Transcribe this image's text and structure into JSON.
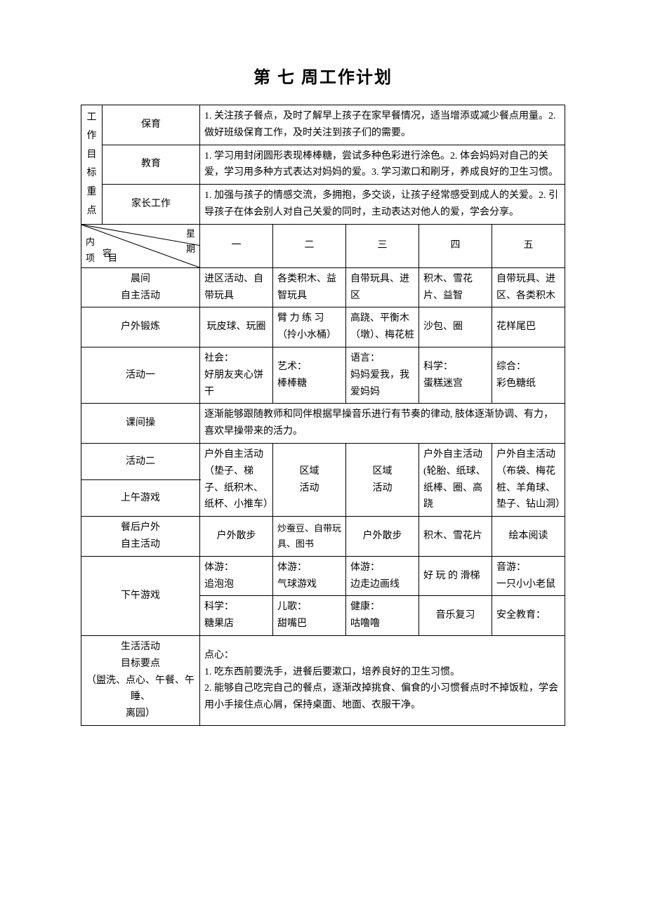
{
  "title": "第 七 周工作计划",
  "focus": {
    "label": "工作目标重点",
    "rows": [
      {
        "category": "保育",
        "content": "1. 关注孩子餐点，及时了解早上孩子在家早餐情况，适当增添或减少餐点用量。2. 做好班级保育工作，及时关注到孩子们的需要。"
      },
      {
        "category": "教育",
        "content": "1. 学习用封闭圆形表现棒棒糖，尝试多种色彩进行涂色。2. 体会妈妈对自己的关爱，学习用多种方式表达对妈妈的爱。3. 学习漱口和刷牙，养成良好的卫生习惯。"
      },
      {
        "category": "家长工作",
        "content": "1. 加强与孩子的情感交流，多拥抱，多交谈，让孩子经常感受到成人的关爱。2. 引导孩子在体会别人对自己关爱的同时，主动表达对他人的爱，学会分享。"
      }
    ]
  },
  "diag": {
    "topLeft": "内",
    "mid": "容",
    "topRight": "星\n期",
    "bottomLeft": "项",
    "bottomMid": "目"
  },
  "days": [
    "一",
    "二",
    "三",
    "四",
    "五"
  ],
  "rows": {
    "morning": {
      "label": "晨间\n自主活动",
      "cells": [
        "进区活动、自带玩具",
        "各类积木、益智玩具",
        "自带玩具、进区",
        "积木、雪花片、益智",
        "自带玩具、进区、各类积木"
      ]
    },
    "outdoor": {
      "label": "户外锻炼",
      "cells": [
        "玩皮球、玩圈",
        "臂 力 练 习（拎小水桶）",
        "高跷、平衡木（墩）、梅花桩",
        "沙包、圈",
        "花样尾巴"
      ]
    },
    "act1": {
      "label": "活动一",
      "cells": [
        "社会：\n好朋友夹心饼干",
        "艺术：\n棒棒糖",
        "语言：\n妈妈爱我，我爱妈妈",
        "科学：\n蛋糕迷宫",
        "综合：\n彩色糖纸"
      ]
    },
    "recess": {
      "label": "课间操",
      "content": "逐渐能够跟随教师和同伴根据早操音乐进行有节奏的律动, 肢体逐渐协调、有力，喜欢早操带来的活力。"
    },
    "act2": {
      "label": "活动二"
    },
    "amgame": {
      "label": "上午游戏"
    },
    "act2combined": {
      "col1": "户外自主活动（垫子、梯子、纸积木、纸杯、小推车）",
      "col23": "区域\n活动",
      "col4": "户外自主活动(轮胎、纸球、纸棒、圈、高跷",
      "col5": "户外自主活动\n（布袋、梅花桩、羊角球、垫子、钻山洞）"
    },
    "aftermeal": {
      "label": "餐后户外\n自主活动",
      "cells": [
        "户外散步",
        "炒蚕豆、自带玩具、图书",
        "户外散步",
        "积木、雪花片",
        "绘本阅读"
      ]
    },
    "pmgame": {
      "label": "下午游戏",
      "row1": [
        "体游：\n追泡泡",
        "体游：\n气球游戏",
        "体游：\n边走边画线",
        "好 玩 的 滑梯",
        "音游：\n一只小小老鼠"
      ],
      "row2": [
        "科学：\n糖果店",
        "儿歌：\n甜嘴巴",
        "健康：\n咕噜噜",
        "音乐复习",
        "安全教育："
      ]
    },
    "life": {
      "label": "生活活动\n目标要点\n（盥洗、点心、午餐、午睡、\n离园）",
      "content": "点心：\n1. 吃东西前要洗手，进餐后要漱口，培养良好的卫生习惯。\n2. 能够自己吃完自己的餐点，逐渐改掉挑食、偏食的小习惯餐点时不掉饭粒，学会用小手接住点心屑，保持桌面、地面、衣服干净。"
    }
  }
}
